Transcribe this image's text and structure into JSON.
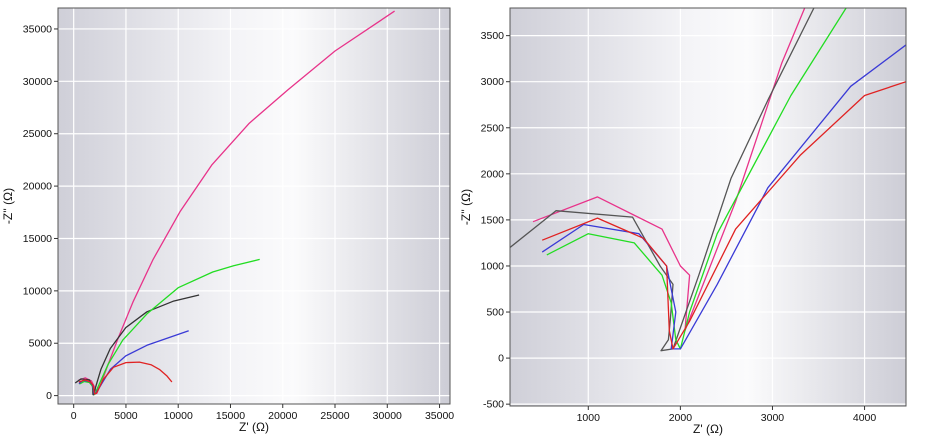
{
  "chart_data": [
    {
      "type": "line",
      "xlabel": "Z' (Ω)",
      "ylabel": "-Z'' (Ω)",
      "xlim": [
        -1500,
        36000
      ],
      "ylim": [
        -800,
        37000
      ],
      "x_ticks": [
        0,
        5000,
        10000,
        15000,
        20000,
        25000,
        30000,
        35000
      ],
      "y_ticks": [
        0,
        5000,
        10000,
        15000,
        20000,
        25000,
        30000,
        35000
      ],
      "x_tick_labels": [
        "0",
        "5000",
        "10000",
        "15000",
        "20000",
        "25000",
        "30000",
        "35000"
      ],
      "y_tick_labels": [
        "0",
        "5000",
        "10000",
        "15000",
        "20000",
        "25000",
        "30000",
        "35000"
      ],
      "grid": true,
      "legend": "none",
      "series": [
        {
          "color": "#e8338a",
          "x": [
            450,
            1100,
            1700,
            2000,
            2200,
            2600,
            3300,
            4300,
            5700,
            7600,
            10200,
            13200,
            16800,
            20500,
            25000,
            30700
          ],
          "y": [
            1450,
            1700,
            1400,
            800,
            200,
            1100,
            3000,
            5600,
            9000,
            13000,
            17600,
            22000,
            26000,
            29200,
            32900,
            36700
          ]
        },
        {
          "color": "#333333",
          "x": [
            150,
            700,
            1500,
            1800,
            1850,
            1900,
            2100,
            2600,
            3500,
            5000,
            7000,
            9500,
            12000
          ],
          "y": [
            1200,
            1600,
            1500,
            900,
            100,
            80,
            800,
            2500,
            4500,
            6500,
            8000,
            9000,
            9600
          ]
        },
        {
          "color": "#22dd22",
          "x": [
            550,
            1000,
            1500,
            1800,
            1900,
            2000,
            2400,
            3300,
            4700,
            7000,
            10000,
            13300,
            15300,
            17800
          ],
          "y": [
            1100,
            1350,
            1250,
            900,
            400,
            100,
            1000,
            3000,
            5300,
            7800,
            10300,
            11800,
            12400,
            13000
          ]
        },
        {
          "color": "#3a3ad6",
          "x": [
            500,
            900,
            1500,
            1800,
            1950,
            2100,
            2600,
            3500,
            5000,
            7000,
            9000,
            11000
          ],
          "y": [
            1150,
            1450,
            1350,
            1000,
            150,
            200,
            1000,
            2500,
            3800,
            4800,
            5500,
            6200
          ]
        },
        {
          "color": "#e02222",
          "x": [
            500,
            1100,
            1600,
            1850,
            2000,
            2200,
            2800,
            3800,
            5000,
            6300,
            7400,
            8200,
            8900,
            9400
          ],
          "y": [
            1300,
            1500,
            1300,
            1000,
            150,
            250,
            1500,
            2700,
            3150,
            3200,
            2950,
            2500,
            1900,
            1300
          ]
        }
      ]
    },
    {
      "type": "line",
      "xlabel": "Z' (Ω)",
      "ylabel": "-Z'' (Ω)",
      "xlim": [
        150,
        4450
      ],
      "ylim": [
        -520,
        3800
      ],
      "x_ticks": [
        1000,
        2000,
        3000,
        4000
      ],
      "y_ticks": [
        -500,
        0,
        500,
        1000,
        1500,
        2000,
        2500,
        3000,
        3500
      ],
      "x_tick_labels": [
        "1000",
        "2000",
        "3000",
        "4000"
      ],
      "y_tick_labels": [
        "-500",
        "0",
        "500",
        "1000",
        "1500",
        "2000",
        "2500",
        "3000",
        "3500"
      ],
      "grid": true,
      "legend": "none",
      "series": [
        {
          "color": "#e8338a",
          "x": [
            400,
            1100,
            1800,
            2000,
            2100,
            2050,
            2600,
            3100,
            3350
          ],
          "y": [
            1480,
            1750,
            1400,
            1000,
            900,
            300,
            1700,
            3200,
            3800
          ]
        },
        {
          "color": "#555555",
          "x": [
            150,
            650,
            1480,
            1780,
            1920,
            1890,
            1870,
            1790,
            1920,
            2200,
            2550,
            2950,
            3450
          ],
          "y": [
            1200,
            1600,
            1530,
            1000,
            800,
            400,
            200,
            80,
            100,
            900,
            1950,
            2800,
            3800
          ]
        },
        {
          "color": "#22dd22",
          "x": [
            550,
            1000,
            1500,
            1800,
            1900,
            1950,
            2000,
            2100,
            2400,
            3200,
            3800
          ],
          "y": [
            1120,
            1350,
            1250,
            900,
            600,
            200,
            100,
            500,
            1350,
            2850,
            3800
          ]
        },
        {
          "color": "#3a3ad6",
          "x": [
            500,
            950,
            1550,
            1850,
            1950,
            1900,
            2000,
            2400,
            2950,
            3850,
            4450
          ],
          "y": [
            1150,
            1450,
            1350,
            1000,
            500,
            100,
            100,
            800,
            1850,
            2950,
            3400
          ]
        },
        {
          "color": "#e02222",
          "x": [
            500,
            1100,
            1600,
            1850,
            1880,
            1920,
            2100,
            2600,
            3300,
            4000,
            4450
          ],
          "y": [
            1280,
            1520,
            1300,
            1000,
            300,
            100,
            400,
            1400,
            2200,
            2850,
            3000
          ]
        }
      ]
    }
  ]
}
